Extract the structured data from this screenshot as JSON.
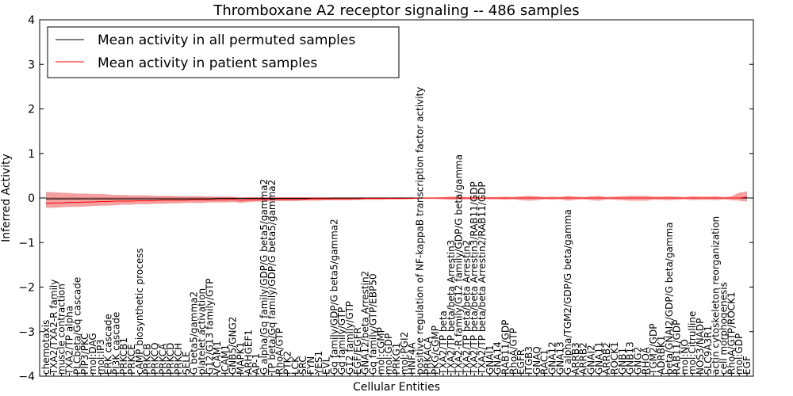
{
  "chart_data": {
    "type": "line",
    "title": "Thromboxane A2 receptor signaling -- 486 samples",
    "xlabel": "Cellular Entities",
    "ylabel": "Inferred Activity",
    "ylim": [
      -4,
      4
    ],
    "yticks": [
      -4,
      -3,
      -2,
      -1,
      0,
      1,
      2,
      3,
      4
    ],
    "legend": {
      "position": "top-left",
      "entries": [
        {
          "label": "Mean activity in all permuted samples",
          "color": "#000000"
        },
        {
          "label": "Mean activity in patient samples",
          "color": "#ff0000"
        }
      ]
    },
    "categories": [
      "chemotaxis",
      "TXA2/TXA2-R family",
      "muscle contraction",
      "TXA2/TP alpha",
      "PLCbeta/Gq cascade",
      "PIP3/PKC",
      "mol:DAG",
      "mol:IP3",
      "ERK cascade",
      "PI3K cascade",
      "PRKCB1",
      "PRKCE",
      "cAMP biosynthetic process",
      "PRKCB",
      "PRKCQ",
      "PRKCA",
      "PRKCD",
      "PRKCH",
      "SELE",
      "G beta5/gamma2",
      "platelet activation",
      "G12/G13 family/GTP",
      "VCAM1",
      "ICAM1",
      "GNB5/GNG2",
      "MAPK1",
      "ARHGEF1",
      "AP-1",
      "G alpha/Gq family/GDP/G beta5/gamma2",
      "TP beta/Gq family/GDP/G beta5/gamma2",
      "RhoA/GTP",
      "PTK2",
      "LCK",
      "SRC",
      "FYN",
      "YES1",
      "EVL",
      "Gq family/GDP/G beta5/gamma2",
      "Gq family/GTP",
      "G12 family/GTP",
      "EGF/EGFR",
      "GNA12/beta Arrestin2",
      "Gq family/GTP/EBP50",
      "mol:cGMP",
      "mol:GDP",
      "PRKG1",
      "mol:PGI2",
      "HNF4A",
      "positive regulation of NF-kappaB transcription factor activity",
      "PRKACA",
      "PKG/cGMP",
      "TXA2/TP beta",
      "TXA2/TP beta/beta Arrestin3",
      "TXA2-R family/G12 family/GDP/G beta/gamma",
      "TXA2/TP beta/beta Arrestin2",
      "TXA2/TP beta/beta Arrestin3/RAB11/GDP",
      "TXA2/TP beta/beta Arrestin2/RAB11/GDP",
      "GNAI1",
      "GNA14",
      "RAB11/GDP",
      "RhoA/GTP",
      "EGFR",
      "ITGB3",
      "GNAQ",
      "RAC1",
      "GNA12",
      "GNA13",
      "G alpha/TGM2/GDP/G beta/gamma",
      "ARRB3",
      "ARRB2",
      "GNAI2",
      "GNA11",
      "ARRB2",
      "ROCK1",
      "GNB1",
      "GNB13",
      "GNG2",
      "RHOA",
      "TGM2/GDP",
      "ADRBK1",
      "beta/GNAI2/GDP/G beta/gamma",
      "RAB11/GDP",
      "mol:NO",
      "mol:Citrulline",
      "NOS3/NADP",
      "SLC9A3R1",
      "actin cytoskeleton reorganization",
      "cell morphogenesis",
      "RhoA/GTP/ROCK1",
      "mol:GDP",
      "EGF"
    ],
    "series": [
      {
        "name": "Mean activity in all permuted samples",
        "color": "#000000",
        "values": [
          -0.02,
          -0.02,
          -0.02,
          -0.02,
          -0.02,
          -0.02,
          -0.02,
          -0.02,
          -0.02,
          -0.02,
          -0.02,
          -0.02,
          -0.02,
          -0.02,
          -0.02,
          -0.02,
          -0.02,
          -0.02,
          -0.02,
          -0.02,
          -0.02,
          -0.02,
          -0.01,
          -0.01,
          -0.01,
          -0.01,
          -0.01,
          -0.01,
          -0.01,
          -0.01,
          -0.01,
          -0.01,
          -0.01,
          -0.01,
          -0.01,
          -0.01,
          -0.01,
          0,
          0,
          0,
          0,
          0,
          0,
          0,
          0,
          0,
          0,
          0,
          0,
          0,
          0,
          0,
          0,
          0,
          0,
          0,
          0,
          0,
          0,
          0,
          0,
          0,
          0,
          0,
          0,
          0,
          0,
          0,
          0,
          0,
          0,
          0,
          0,
          0,
          0,
          0,
          0,
          0,
          0,
          0,
          0,
          0,
          0,
          0,
          0,
          0,
          0,
          0,
          0,
          0,
          0
        ]
      },
      {
        "name": "Mean activity in patient samples",
        "color": "#ff0000",
        "values": [
          -0.12,
          -0.11,
          -0.11,
          -0.1,
          -0.1,
          -0.09,
          -0.09,
          -0.08,
          -0.08,
          -0.07,
          -0.07,
          -0.07,
          -0.06,
          -0.06,
          -0.06,
          -0.05,
          -0.05,
          -0.05,
          -0.05,
          -0.04,
          -0.04,
          -0.04,
          -0.04,
          -0.04,
          -0.03,
          -0.05,
          -0.04,
          -0.04,
          -0.03,
          -0.03,
          -0.03,
          -0.03,
          -0.03,
          -0.03,
          -0.02,
          -0.02,
          -0.02,
          -0.02,
          -0.02,
          -0.02,
          -0.02,
          -0.01,
          -0.01,
          -0.01,
          -0.01,
          -0.01,
          -0.01,
          -0.01,
          0,
          0,
          0,
          0,
          0,
          0,
          0,
          0,
          0,
          0,
          0,
          0,
          0,
          0,
          0,
          0,
          0,
          0,
          0,
          0,
          0,
          0,
          0,
          0,
          0,
          0,
          0,
          0,
          0,
          0,
          0,
          0,
          0,
          0,
          0,
          0,
          0,
          0,
          0,
          0,
          0,
          0,
          0.02
        ]
      }
    ],
    "band": {
      "name": "patient samples spread",
      "color": "#f08080",
      "upper": [
        0.14,
        0.13,
        0.12,
        0.11,
        0.1,
        0.1,
        0.09,
        0.09,
        0.08,
        0.07,
        0.07,
        0.06,
        0.06,
        0.06,
        0.05,
        0.05,
        0.05,
        0.04,
        0.04,
        0.04,
        0.04,
        0.03,
        0.03,
        0.03,
        0.03,
        0.01,
        0.02,
        0.02,
        0.02,
        0.02,
        0.02,
        0.02,
        0.02,
        0.02,
        0.02,
        0.02,
        0.02,
        0.01,
        0.01,
        0.01,
        0.01,
        0.01,
        0.01,
        0.01,
        0.01,
        0.01,
        0.01,
        0.01,
        0.01,
        0.01,
        0.01,
        0.02,
        0.03,
        0.03,
        0.02,
        0.03,
        0.01,
        0.02,
        0.02,
        0.03,
        0.02,
        0.04,
        0.05,
        0.04,
        0.02,
        0.03,
        0.02,
        0.05,
        0.03,
        0.02,
        0.04,
        0.05,
        0.02,
        0.03,
        0.04,
        0.05,
        0.05,
        0.05,
        0.03,
        0.03,
        0.04,
        0.03,
        0.02,
        0.04,
        0.03,
        0.03,
        0.04,
        0.02,
        0.04,
        0.12,
        0.15
      ],
      "lower": [
        -0.22,
        -0.22,
        -0.21,
        -0.2,
        -0.2,
        -0.19,
        -0.18,
        -0.17,
        -0.17,
        -0.16,
        -0.15,
        -0.15,
        -0.14,
        -0.14,
        -0.13,
        -0.13,
        -0.12,
        -0.12,
        -0.11,
        -0.11,
        -0.11,
        -0.1,
        -0.1,
        -0.1,
        -0.09,
        -0.11,
        -0.09,
        -0.08,
        -0.08,
        -0.07,
        -0.07,
        -0.07,
        -0.07,
        -0.06,
        -0.06,
        -0.06,
        -0.05,
        -0.05,
        -0.05,
        -0.05,
        -0.04,
        -0.04,
        -0.04,
        -0.04,
        -0.03,
        -0.03,
        -0.03,
        -0.02,
        -0.02,
        -0.02,
        -0.02,
        -0.03,
        -0.04,
        -0.04,
        -0.03,
        -0.04,
        -0.02,
        -0.03,
        -0.03,
        -0.04,
        -0.03,
        -0.05,
        -0.06,
        -0.05,
        -0.03,
        -0.04,
        -0.03,
        -0.06,
        -0.04,
        -0.03,
        -0.05,
        -0.06,
        -0.03,
        -0.04,
        -0.05,
        -0.06,
        -0.06,
        -0.06,
        -0.04,
        -0.04,
        -0.05,
        -0.04,
        -0.03,
        -0.05,
        -0.04,
        -0.04,
        -0.05,
        -0.03,
        -0.05,
        -0.06,
        -0.08
      ]
    }
  }
}
